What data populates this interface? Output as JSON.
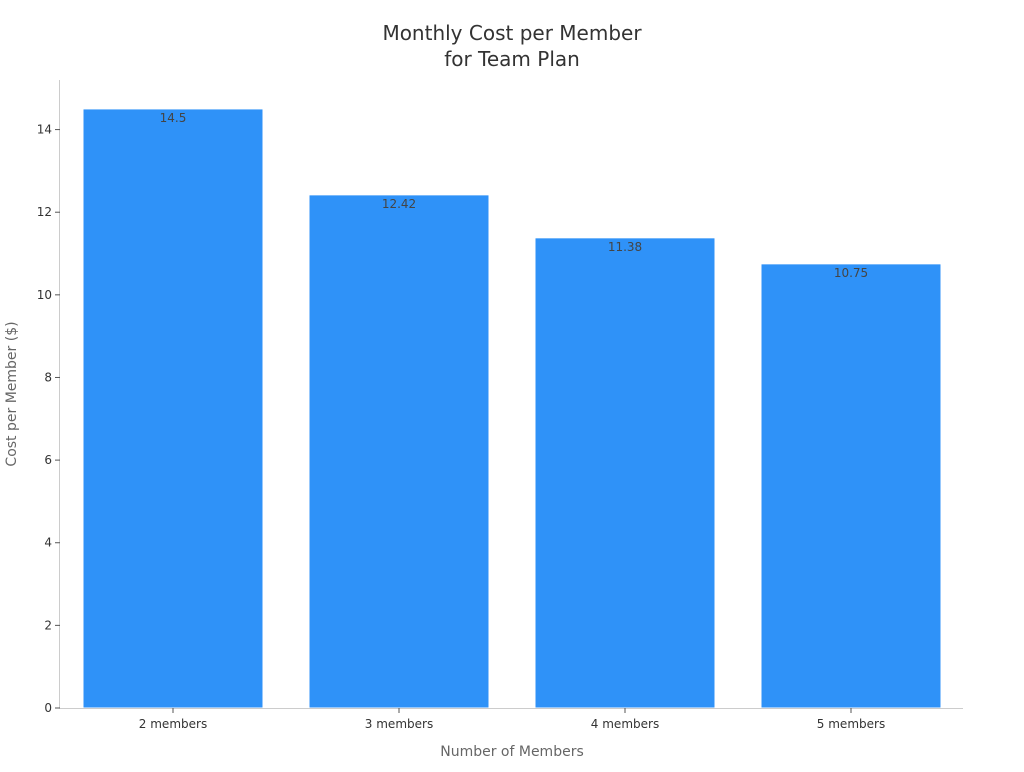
{
  "chart_data": {
    "type": "bar",
    "title_lines": [
      "Monthly Cost per Member",
      "for Team Plan"
    ],
    "xlabel": "Number of Members",
    "ylabel": "Cost per Member ($)",
    "categories": [
      "2 members",
      "3 members",
      "4 members",
      "5 members"
    ],
    "values": [
      14.5,
      12.42,
      11.38,
      10.75
    ],
    "data_labels": [
      "14.5",
      "12.42",
      "11.38",
      "10.75"
    ],
    "ylim": [
      0,
      15.2
    ],
    "yticks": [
      0,
      2,
      4,
      6,
      8,
      10,
      12,
      14
    ],
    "ytick_labels": [
      "0",
      "2",
      "4",
      "6",
      "8",
      "10",
      "12",
      "14"
    ],
    "grid": false,
    "legend": "none",
    "bar_color": "#2f92f8"
  }
}
